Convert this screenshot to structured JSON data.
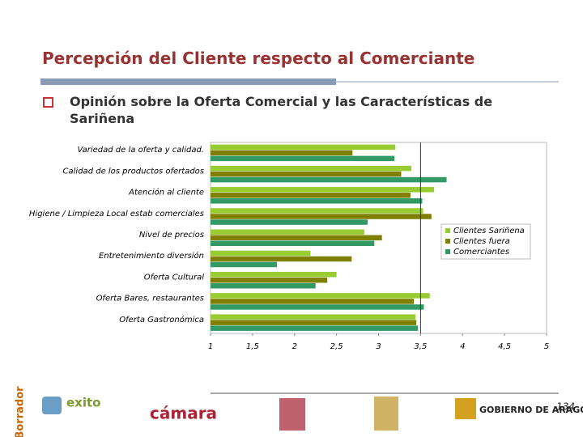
{
  "slide": {
    "title": "Percepción del Cliente respecto al Comerciante",
    "bullet": "Opinión sobre la Oferta Comercial y las Características de Sariñena",
    "page_number": "134",
    "footer_texts": [
      "Borrador",
      "exito",
      "cámara",
      "GOBIERNO DE ARAGON"
    ]
  },
  "chart_data": {
    "type": "barh",
    "categories": [
      "Variedad de la oferta y calidad.",
      "Calidad de los productos ofertados",
      "Atención al cliente",
      "Higiene / Limpieza Local estab comerciales",
      "Nivel de precios",
      "Entretenimiento diversión",
      "Oferta Cultural",
      "Oferta Bares, restaurantes",
      "Oferta Gastronómica"
    ],
    "series": [
      {
        "name": "Clientes Sariñena",
        "color": "#99cc33",
        "values": [
          3.2,
          3.39,
          3.66,
          3.53,
          2.83,
          2.19,
          2.5,
          3.61,
          3.44
        ]
      },
      {
        "name": "Clientes fuera",
        "color": "#808000",
        "values": [
          2.69,
          3.27,
          3.38,
          3.63,
          3.04,
          2.68,
          2.39,
          3.42,
          3.45
        ]
      },
      {
        "name": "Comerciantes",
        "color": "#339966",
        "values": [
          3.19,
          3.81,
          3.52,
          2.87,
          2.95,
          1.79,
          2.25,
          3.54,
          3.47
        ]
      }
    ],
    "xlim": [
      1,
      5
    ],
    "xticks": [
      1,
      {
        "value": 1.5,
        "label": "1,5"
      },
      2,
      {
        "value": 2.5,
        "label": "2,5"
      },
      3,
      {
        "value": 3.5,
        "label": "3,5"
      },
      4,
      {
        "value": 4.5,
        "label": "4,5"
      },
      5
    ],
    "reference_line": 3.5,
    "legend": "right"
  }
}
